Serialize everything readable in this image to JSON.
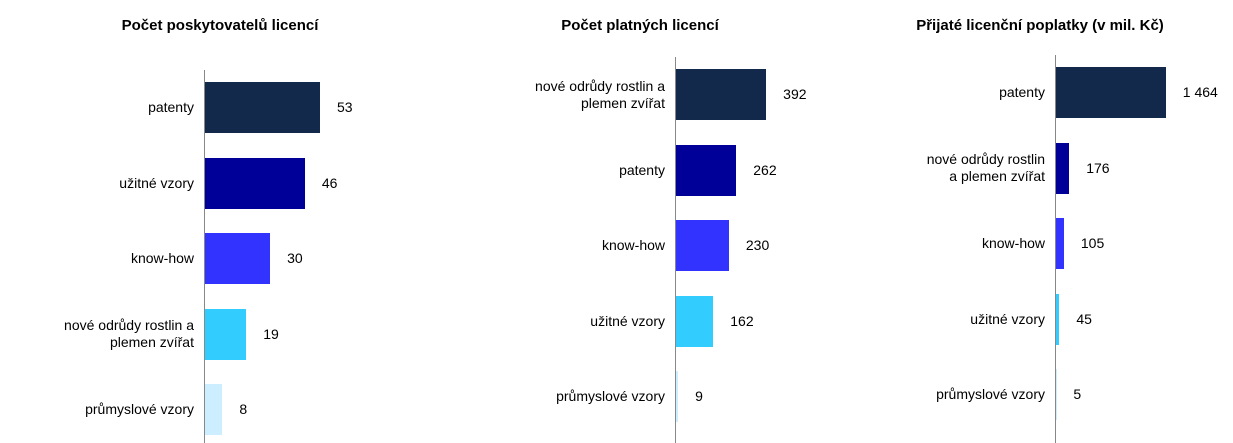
{
  "chart_data": [
    {
      "type": "hbar",
      "title": "Počet poskytovatelů licencí",
      "categories": [
        "patenty",
        "užitné vzory",
        "know-how",
        "nové odrůdy rostlin a\nplemen zvířat",
        "průmyslové vzory"
      ],
      "values": [
        53,
        46,
        30,
        19,
        8
      ],
      "colors": [
        "#13294b",
        "#000099",
        "#3333ff",
        "#33ccff",
        "#cceeff"
      ],
      "xlim": [
        0,
        100
      ]
    },
    {
      "type": "hbar",
      "title": "Počet platných licencí",
      "categories": [
        "nové odrůdy rostlin a\nplemen zvířat",
        "patenty",
        "know-how",
        "užitné vzory",
        "průmyslové vzory"
      ],
      "values": [
        392,
        262,
        230,
        162,
        9
      ],
      "colors": [
        "#13294b",
        "#000099",
        "#3333ff",
        "#33ccff",
        "#cceeff"
      ],
      "xlim": [
        0,
        1000
      ]
    },
    {
      "type": "hbar",
      "title": "Přijaté licenční poplatky (v mil. Kč)",
      "categories": [
        "patenty",
        "nové odrůdy rostlin\na plemen zvířat",
        "know-how",
        "užitné vzory",
        "průmyslové vzory"
      ],
      "values": [
        1464,
        176,
        105,
        45,
        5
      ],
      "value_labels": [
        "1 464",
        "176",
        "105",
        "45",
        "5"
      ],
      "colors": [
        "#13294b",
        "#000099",
        "#3333ff",
        "#33ccff",
        "#cceeff"
      ],
      "xlim": [
        0,
        3000
      ]
    }
  ]
}
